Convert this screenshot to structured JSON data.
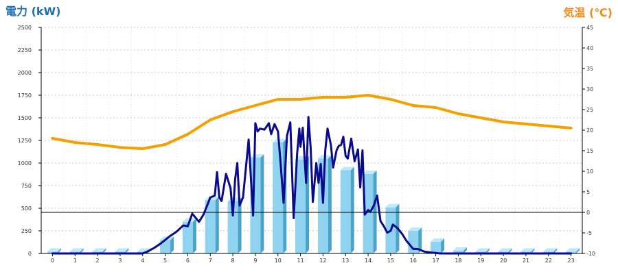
{
  "chart_data": {
    "type": "bar",
    "left_title": "電力 (kW)",
    "right_title": "気温 (℃)",
    "colors": {
      "left_title": "#1f6fb2",
      "right_title": "#f08a1c",
      "bar_front": "#8fd3f0",
      "bar_side": "#4aa4c8",
      "bar_top": "#bfe8f8",
      "power_line": "#0a0a8c",
      "temp_line": "#f5a000",
      "grid": "#c8c8c8",
      "axis": "#000000"
    },
    "y_left": {
      "min": 0,
      "max": 2500,
      "ticks": [
        "0",
        "250",
        "500",
        "750",
        "1000",
        "1250",
        "1500",
        "1750",
        "2000",
        "2250",
        "2500"
      ]
    },
    "y_right": {
      "min": -10,
      "max": 45,
      "ticks": [
        "-10",
        "-5",
        "0",
        "5",
        "10",
        "15",
        "20",
        "25",
        "30",
        "35",
        "40",
        "45"
      ]
    },
    "categories": [
      "0",
      "1",
      "2",
      "3",
      "4",
      "5",
      "6",
      "7",
      "8",
      "9",
      "10",
      "11",
      "12",
      "13",
      "14",
      "15",
      "16",
      "17",
      "18",
      "19",
      "20",
      "21",
      "22",
      "23"
    ],
    "bars": [
      20,
      20,
      20,
      20,
      20,
      150,
      350,
      590,
      580,
      1060,
      1230,
      1040,
      1050,
      920,
      880,
      510,
      250,
      130,
      30,
      20,
      20,
      20,
      20,
      20
    ],
    "power_line": {
      "x": [
        0,
        1,
        2,
        3,
        4,
        4.2,
        4.5,
        4.8,
        5,
        5.2,
        5.5,
        5.8,
        6,
        6.2,
        6.5,
        6.7,
        7,
        7.2,
        7.3,
        7.4,
        7.5,
        7.7,
        7.9,
        8,
        8.1,
        8.2,
        8.3,
        8.45,
        8.6,
        8.7,
        8.9,
        9,
        9.1,
        9.2,
        9.4,
        9.6,
        9.7,
        9.85,
        10,
        10.1,
        10.25,
        10.4,
        10.55,
        10.7,
        10.85,
        10.95,
        11,
        11.1,
        11.25,
        11.35,
        11.45,
        11.55,
        11.7,
        11.8,
        11.9,
        12,
        12.1,
        12.2,
        12.35,
        12.45,
        12.6,
        12.7,
        12.8,
        12.9,
        13,
        13.1,
        13.25,
        13.4,
        13.55,
        13.65,
        13.75,
        13.85,
        14,
        14.1,
        14.25,
        14.4,
        14.55,
        14.7,
        14.85,
        15,
        15.1,
        15.3,
        15.5,
        15.7,
        16,
        16.2,
        16.5,
        16.8,
        17,
        17.2,
        17.5,
        17.7,
        18,
        19,
        20,
        21,
        22,
        23
      ],
      "y": [
        0,
        0,
        0,
        0,
        0,
        20,
        60,
        110,
        150,
        190,
        240,
        310,
        300,
        440,
        350,
        430,
        620,
        640,
        900,
        620,
        580,
        880,
        720,
        420,
        820,
        1000,
        530,
        620,
        1000,
        1260,
        420,
        1440,
        1350,
        1380,
        1370,
        1440,
        1320,
        1430,
        1350,
        1060,
        560,
        1300,
        1450,
        390,
        1100,
        1380,
        1180,
        1390,
        780,
        1510,
        1170,
        570,
        1000,
        780,
        990,
        560,
        1140,
        1380,
        1200,
        950,
        1140,
        1190,
        1200,
        1290,
        1080,
        1050,
        1270,
        1020,
        1150,
        730,
        1140,
        430,
        480,
        460,
        530,
        640,
        360,
        300,
        230,
        250,
        320,
        280,
        220,
        140,
        50,
        50,
        20,
        10,
        5,
        0,
        0,
        0,
        0,
        0,
        0,
        0,
        0,
        0
      ]
    },
    "temp_line": {
      "x": [
        0,
        1,
        2,
        3,
        4,
        5,
        6,
        7,
        8,
        9,
        10,
        11,
        12,
        13,
        14,
        15,
        16,
        17,
        18,
        19,
        20,
        21,
        22,
        23
      ],
      "y": [
        18.0,
        17.0,
        16.5,
        15.8,
        15.5,
        16.5,
        19.0,
        22.5,
        24.5,
        26.0,
        27.5,
        27.5,
        28.0,
        28.0,
        28.5,
        27.5,
        26.0,
        25.5,
        24.0,
        23.0,
        22.0,
        21.5,
        21.0,
        20.5
      ]
    }
  }
}
